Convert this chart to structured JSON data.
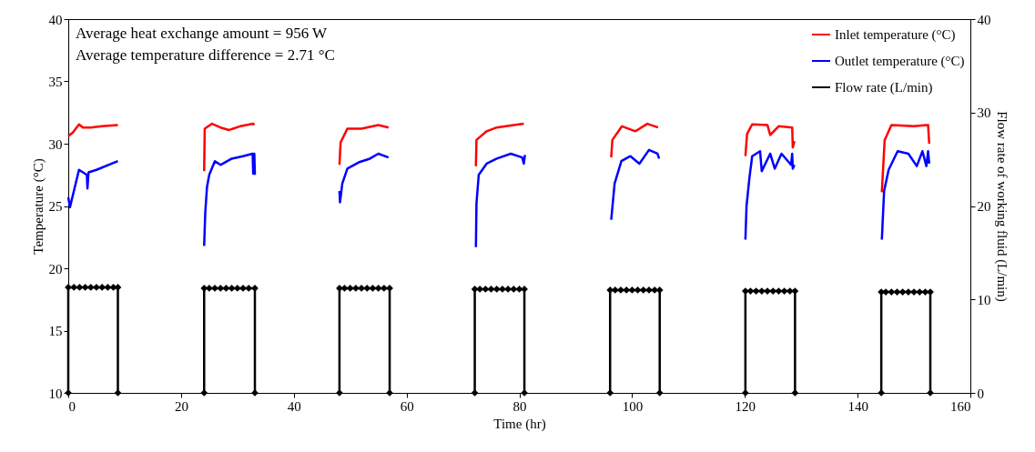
{
  "chart_data": {
    "type": "line",
    "xlabel": "Time (hr)",
    "ylabel": "Temperature (°C)",
    "y2label": "Flow rate of working fluid (L/min)",
    "annotations": [
      "Average heat exchange amount = 956 W",
      "Average temperature difference = 2.71 °C"
    ],
    "xlim": [
      0,
      160
    ],
    "xticks": [
      0,
      20,
      40,
      60,
      80,
      100,
      120,
      140,
      160
    ],
    "ylim": [
      10,
      40
    ],
    "yticks": [
      10,
      15,
      20,
      25,
      30,
      35,
      40
    ],
    "y2lim": [
      0,
      40
    ],
    "y2ticks": [
      0,
      10,
      20,
      30,
      40
    ],
    "legend": "top right",
    "grid": false,
    "series": [
      {
        "name": "Inlet temperature (°C)",
        "color": "#ff0000",
        "marker": "none",
        "x": [
          0,
          0.8,
          1.9,
          2.6,
          4,
          6,
          8.8,
          null,
          24.1,
          24.2,
          25.5,
          27,
          28.5,
          30.5,
          32.8,
          33,
          null,
          48.1,
          48.3,
          49.5,
          52,
          55,
          56.8,
          null,
          72.3,
          72.4,
          74.2,
          76,
          79,
          80.8,
          null,
          96.3,
          96.5,
          98.2,
          100.6,
          102.7,
          104.6,
          null,
          120.1,
          120.4,
          121.3,
          124,
          124.5,
          126,
          128.4,
          128.5,
          128.8,
          null,
          144.3,
          144.8,
          146,
          150,
          152.5,
          152.7
        ],
        "values": [
          30.6,
          30.9,
          31.55,
          31.3,
          31.3,
          31.4,
          31.5,
          null,
          27.8,
          31.2,
          31.6,
          31.3,
          31.1,
          31.4,
          31.6,
          31.5,
          null,
          28.3,
          30.1,
          31.2,
          31.2,
          31.5,
          31.3,
          null,
          28.2,
          30.3,
          31.0,
          31.3,
          31.5,
          31.6,
          null,
          28.9,
          30.3,
          31.4,
          31.0,
          31.6,
          31.3,
          null,
          29.0,
          30.8,
          31.55,
          31.5,
          30.7,
          31.4,
          31.3,
          29.7,
          30.2,
          null,
          26.1,
          30.3,
          31.5,
          31.4,
          31.5,
          30.0
        ]
      },
      {
        "name": "Outlet temperature (°C)",
        "color": "#0000ff",
        "marker": "none",
        "x": [
          0,
          0.3,
          1.9,
          3.3,
          3.4,
          3.6,
          5,
          8.8,
          null,
          24.1,
          24.3,
          24.6,
          25,
          26,
          27,
          29,
          31,
          32.7,
          32.8,
          33,
          33.1,
          null,
          48.1,
          48.2,
          48.6,
          49.5,
          51.5,
          53.5,
          55,
          56.8,
          null,
          72.3,
          72.4,
          72.8,
          74.2,
          76,
          78.5,
          80.5,
          80.8,
          81,
          null,
          96.3,
          96.9,
          98.1,
          99.7,
          101.3,
          103,
          104.5,
          104.8,
          null,
          120.1,
          120.3,
          120.8,
          121.3,
          122.7,
          123,
          124.5,
          125.3,
          126.5,
          128.2,
          128.4,
          128.5,
          128.8,
          null,
          144.3,
          144.7,
          145.5,
          147.1,
          149,
          150.5,
          151.5,
          152.2,
          152.5,
          152.7
        ],
        "values": [
          25.7,
          24.9,
          27.9,
          27.5,
          26.4,
          27.7,
          27.9,
          28.6,
          null,
          21.8,
          24.5,
          26.5,
          27.5,
          28.6,
          28.3,
          28.8,
          29.0,
          29.2,
          27.6,
          29.2,
          27.5,
          null,
          26.2,
          25.3,
          26.8,
          28.0,
          28.5,
          28.8,
          29.2,
          28.9,
          null,
          21.7,
          25.2,
          27.5,
          28.4,
          28.8,
          29.2,
          28.9,
          28.4,
          29.1,
          null,
          23.9,
          26.8,
          28.6,
          29.0,
          28.4,
          29.5,
          29.2,
          28.8,
          null,
          22.3,
          25.0,
          27.2,
          29.0,
          29.4,
          27.8,
          29.2,
          28.0,
          29.2,
          28.3,
          29.2,
          28.0,
          28.3,
          null,
          22.3,
          26.2,
          27.9,
          29.4,
          29.2,
          28.2,
          29.4,
          28.2,
          29.4,
          28.4
        ]
      },
      {
        "name": "Flow rate  (L/min)",
        "color": "#000000",
        "marker": "diamond",
        "axis": "y2",
        "x": [
          0,
          0,
          1,
          2,
          3,
          4,
          5,
          6,
          7,
          8,
          8.8,
          8.8,
          null,
          24.1,
          24.1,
          25,
          26,
          27,
          28,
          29,
          30,
          31,
          32,
          33.1,
          33.1,
          null,
          48.1,
          48.1,
          49,
          50,
          51,
          52,
          53,
          54,
          55,
          56,
          57,
          57,
          null,
          72.1,
          72.1,
          73,
          74,
          75,
          76,
          77,
          78,
          79,
          80,
          80.9,
          80.9,
          null,
          96.1,
          96.1,
          97,
          98,
          99,
          100,
          101,
          102,
          103,
          104,
          104.9,
          104.9,
          null,
          120.1,
          120.1,
          121,
          122,
          123,
          124,
          125,
          126,
          127,
          128,
          128.9,
          128.9,
          null,
          144.2,
          144.2,
          145,
          146,
          147,
          148,
          149,
          150,
          151,
          152,
          152.9,
          152.9
        ],
        "values": [
          0,
          11.3,
          11.3,
          11.3,
          11.3,
          11.3,
          11.3,
          11.3,
          11.3,
          11.3,
          11.3,
          0,
          null,
          0,
          11.2,
          11.2,
          11.2,
          11.2,
          11.2,
          11.2,
          11.2,
          11.2,
          11.2,
          11.2,
          0,
          null,
          0,
          11.2,
          11.2,
          11.2,
          11.2,
          11.2,
          11.2,
          11.2,
          11.2,
          11.2,
          11.2,
          0,
          null,
          0,
          11.1,
          11.1,
          11.1,
          11.1,
          11.1,
          11.1,
          11.1,
          11.1,
          11.1,
          11.1,
          0,
          null,
          0,
          11.0,
          11.0,
          11.0,
          11.0,
          11.0,
          11.0,
          11.0,
          11.0,
          11.0,
          11.0,
          0,
          null,
          0,
          10.9,
          10.9,
          10.9,
          10.9,
          10.9,
          10.9,
          10.9,
          10.9,
          10.9,
          10.9,
          0,
          null,
          0,
          10.8,
          10.8,
          10.8,
          10.8,
          10.8,
          10.8,
          10.8,
          10.8,
          10.8,
          10.8,
          0
        ]
      }
    ]
  }
}
